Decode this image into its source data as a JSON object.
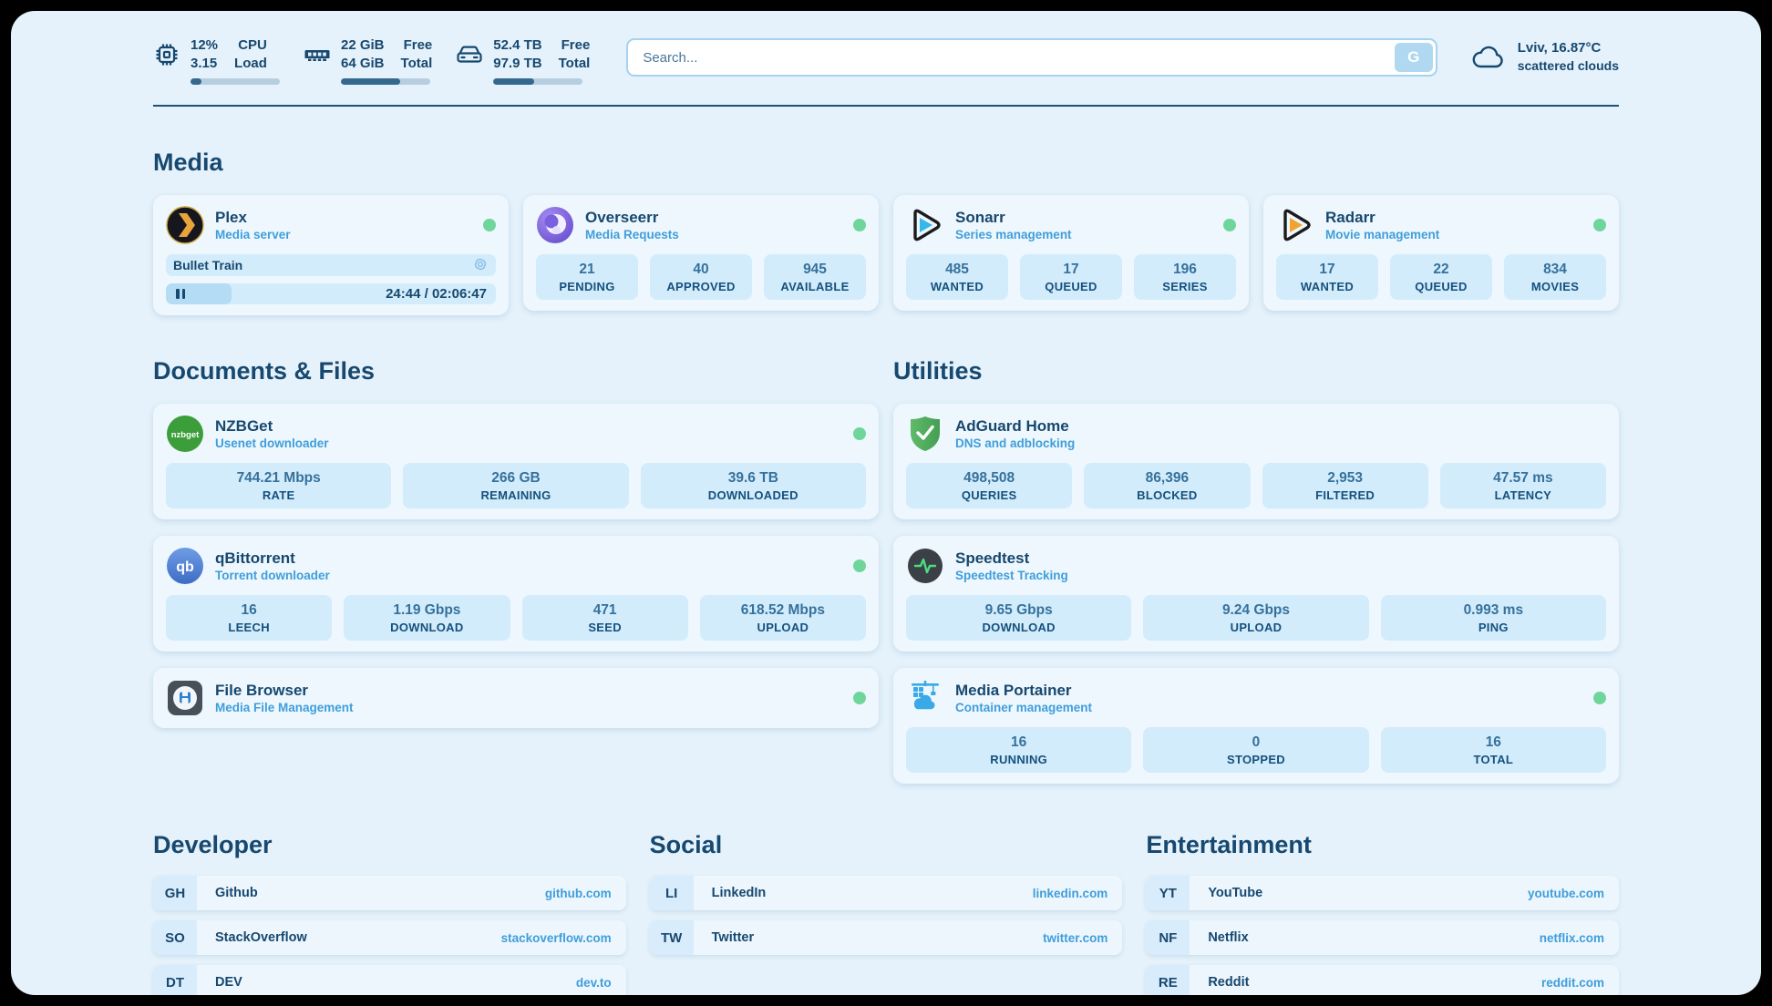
{
  "colors": {
    "navy": "#17486f",
    "accent_blue": "#3f9edb",
    "status_green": "#6fd69b",
    "stat_box": "#d3ecfb",
    "page_bg": "#e5f2fb"
  },
  "header": {
    "system": [
      {
        "icon": "cpu-icon",
        "value_top": "12%",
        "value_bottom": "3.15",
        "label_top": "CPU",
        "label_bottom": "Load",
        "progress_pct": 12
      },
      {
        "icon": "ram-icon",
        "value_top": "22 GiB",
        "value_bottom": "64 GiB",
        "label_top": "Free",
        "label_bottom": "Total",
        "progress_pct": 66
      },
      {
        "icon": "disk-icon",
        "value_top": "52.4 TB",
        "value_bottom": "97.9 TB",
        "label_top": "Free",
        "label_bottom": "Total",
        "progress_pct": 46
      }
    ],
    "search": {
      "placeholder": "Search...",
      "value": "",
      "button_label": "G"
    },
    "weather": {
      "icon": "cloud-icon",
      "location": "Lviv, 16.87°C",
      "condition": "scattered clouds"
    }
  },
  "sections": {
    "media": "Media",
    "documents": "Documents & Files",
    "utilities": "Utilities",
    "developer": "Developer",
    "social": "Social",
    "entertainment": "Entertainment"
  },
  "apps": {
    "plex": {
      "icon": "plex-icon",
      "name": "Plex",
      "desc": "Media server",
      "status": "online",
      "media": {
        "title": "Bullet Train",
        "time": "24:44 / 02:06:47",
        "progress_pct": 20,
        "state": "paused"
      }
    },
    "overseerr": {
      "icon": "overseerr-icon",
      "name": "Overseerr",
      "desc": "Media Requests",
      "status": "online",
      "stats": [
        {
          "value": "21",
          "label": "PENDING"
        },
        {
          "value": "40",
          "label": "APPROVED"
        },
        {
          "value": "945",
          "label": "AVAILABLE"
        }
      ]
    },
    "sonarr": {
      "icon": "sonarr-icon",
      "name": "Sonarr",
      "desc": "Series management",
      "status": "online",
      "stats": [
        {
          "value": "485",
          "label": "WANTED"
        },
        {
          "value": "17",
          "label": "QUEUED"
        },
        {
          "value": "196",
          "label": "SERIES"
        }
      ]
    },
    "radarr": {
      "icon": "radarr-icon",
      "name": "Radarr",
      "desc": "Movie management",
      "status": "online",
      "stats": [
        {
          "value": "17",
          "label": "WANTED"
        },
        {
          "value": "22",
          "label": "QUEUED"
        },
        {
          "value": "834",
          "label": "MOVIES"
        }
      ]
    },
    "nzbget": {
      "icon": "nzbget-icon",
      "name": "NZBGet",
      "desc": "Usenet downloader",
      "status": "online",
      "stats": [
        {
          "value": "744.21 Mbps",
          "label": "RATE"
        },
        {
          "value": "266 GB",
          "label": "REMAINING"
        },
        {
          "value": "39.6 TB",
          "label": "DOWNLOADED"
        }
      ]
    },
    "adguard": {
      "icon": "adguard-icon",
      "name": "AdGuard Home",
      "desc": "DNS and adblocking",
      "stats": [
        {
          "value": "498,508",
          "label": "QUERIES"
        },
        {
          "value": "86,396",
          "label": "BLOCKED"
        },
        {
          "value": "2,953",
          "label": "FILTERED"
        },
        {
          "value": "47.57 ms",
          "label": "LATENCY"
        }
      ]
    },
    "qbittorrent": {
      "icon": "qbittorrent-icon",
      "name": "qBittorrent",
      "desc": "Torrent downloader",
      "status": "online",
      "stats": [
        {
          "value": "16",
          "label": "LEECH"
        },
        {
          "value": "1.19 Gbps",
          "label": "DOWNLOAD"
        },
        {
          "value": "471",
          "label": "SEED"
        },
        {
          "value": "618.52 Mbps",
          "label": "UPLOAD"
        }
      ]
    },
    "speedtest": {
      "icon": "speedtest-icon",
      "name": "Speedtest",
      "desc": "Speedtest Tracking",
      "stats": [
        {
          "value": "9.65 Gbps",
          "label": "DOWNLOAD"
        },
        {
          "value": "9.24 Gbps",
          "label": "UPLOAD"
        },
        {
          "value": "0.993 ms",
          "label": "PING"
        }
      ]
    },
    "filebrowser": {
      "icon": "filebrowser-icon",
      "name": "File Browser",
      "desc": "Media File Management",
      "status": "online"
    },
    "portainer": {
      "icon": "portainer-icon",
      "name": "Media Portainer",
      "desc": "Container management",
      "status": "online",
      "stats": [
        {
          "value": "16",
          "label": "RUNNING"
        },
        {
          "value": "0",
          "label": "STOPPED"
        },
        {
          "value": "16",
          "label": "TOTAL"
        }
      ]
    }
  },
  "bookmarks": {
    "developer": [
      {
        "abbr": "GH",
        "name": "Github",
        "url": "github.com"
      },
      {
        "abbr": "SO",
        "name": "StackOverflow",
        "url": "stackoverflow.com"
      },
      {
        "abbr": "DT",
        "name": "DEV",
        "url": "dev.to"
      }
    ],
    "social": [
      {
        "abbr": "LI",
        "name": "LinkedIn",
        "url": "linkedin.com"
      },
      {
        "abbr": "TW",
        "name": "Twitter",
        "url": "twitter.com"
      }
    ],
    "entertainment": [
      {
        "abbr": "YT",
        "name": "YouTube",
        "url": "youtube.com"
      },
      {
        "abbr": "NF",
        "name": "Netflix",
        "url": "netflix.com"
      },
      {
        "abbr": "RE",
        "name": "Reddit",
        "url": "reddit.com"
      }
    ]
  }
}
